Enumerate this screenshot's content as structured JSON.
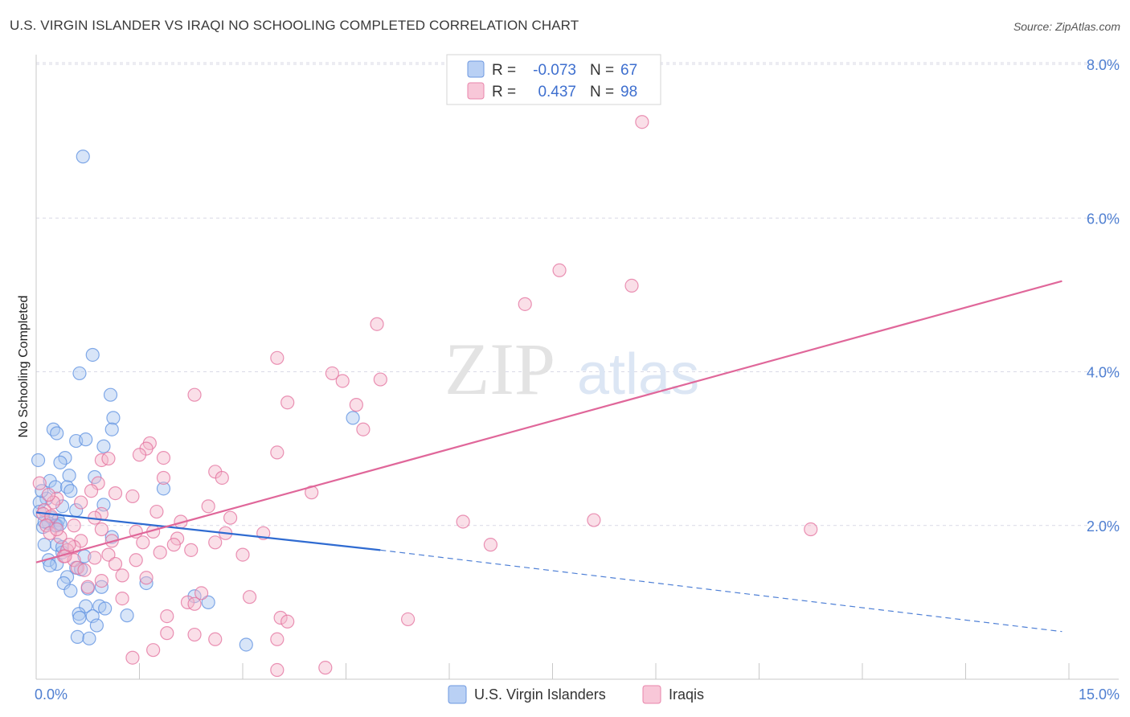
{
  "chart_data": {
    "type": "scatter",
    "title": "U.S. VIRGIN ISLANDER VS IRAQI NO SCHOOLING COMPLETED CORRELATION CHART",
    "source": "Source: ZipAtlas.com",
    "ylabel": "No Schooling Completed",
    "xlabel": "",
    "xlim": [
      0,
      15
    ],
    "ylim": [
      0,
      8.0
    ],
    "x_tick_labels": [
      "0.0%",
      "15.0%"
    ],
    "y_tick_values": [
      2.0,
      4.0,
      6.0,
      8.0
    ],
    "y_tick_labels": [
      "2.0%",
      "4.0%",
      "6.0%",
      "8.0%"
    ],
    "watermark": {
      "zip": "ZIP",
      "atlas": "atlas"
    },
    "legend_position": "top-center",
    "legend": [
      {
        "r_label": "R =",
        "r_value": "-0.073",
        "n_label": "N =",
        "n_value": "67"
      },
      {
        "r_label": "R =",
        "r_value": "0.437",
        "n_label": "N =",
        "n_value": "98"
      }
    ],
    "colors": {
      "blue": "#5b8fe0",
      "blue_fill": "#a9c5f0",
      "pink": "#e36f9c",
      "pink_fill": "#f5b8cd",
      "grid": "#d9d9e6"
    },
    "series": [
      {
        "name": "U.S. Virgin Islanders",
        "trend": {
          "x": [
            0,
            5
          ],
          "y": [
            2.17,
            1.68
          ],
          "dashed_to_x": 14.9,
          "dashed_to_y": 0.62
        },
        "points": [
          [
            0.68,
            6.8
          ],
          [
            0.82,
            4.22
          ],
          [
            0.63,
            3.98
          ],
          [
            1.08,
            3.7
          ],
          [
            0.25,
            3.25
          ],
          [
            0.3,
            3.2
          ],
          [
            1.12,
            3.4
          ],
          [
            1.1,
            3.25
          ],
          [
            0.58,
            3.1
          ],
          [
            0.72,
            3.12
          ],
          [
            0.98,
            3.03
          ],
          [
            0.03,
            2.85
          ],
          [
            0.42,
            2.88
          ],
          [
            0.35,
            2.82
          ],
          [
            0.48,
            2.65
          ],
          [
            0.2,
            2.58
          ],
          [
            0.85,
            2.63
          ],
          [
            0.28,
            2.5
          ],
          [
            0.45,
            2.5
          ],
          [
            0.5,
            2.45
          ],
          [
            1.85,
            2.48
          ],
          [
            0.15,
            2.35
          ],
          [
            0.05,
            2.3
          ],
          [
            0.38,
            2.25
          ],
          [
            0.58,
            2.2
          ],
          [
            0.98,
            2.27
          ],
          [
            0.22,
            2.1
          ],
          [
            0.32,
            2.07
          ],
          [
            0.18,
            2.03
          ],
          [
            0.3,
            2.0
          ],
          [
            0.1,
            1.98
          ],
          [
            0.28,
            2.0
          ],
          [
            0.35,
            2.02
          ],
          [
            0.12,
            2.05
          ],
          [
            1.1,
            1.85
          ],
          [
            0.12,
            1.75
          ],
          [
            0.3,
            1.75
          ],
          [
            0.38,
            1.65
          ],
          [
            0.38,
            1.72
          ],
          [
            0.7,
            1.6
          ],
          [
            0.18,
            1.55
          ],
          [
            0.3,
            1.5
          ],
          [
            0.2,
            1.48
          ],
          [
            0.58,
            1.45
          ],
          [
            0.65,
            1.43
          ],
          [
            0.45,
            1.33
          ],
          [
            0.4,
            1.25
          ],
          [
            0.95,
            1.2
          ],
          [
            1.6,
            1.25
          ],
          [
            0.75,
            1.18
          ],
          [
            0.5,
            1.15
          ],
          [
            2.3,
            1.08
          ],
          [
            2.5,
            1.0
          ],
          [
            0.92,
            0.95
          ],
          [
            0.72,
            0.95
          ],
          [
            1.0,
            0.92
          ],
          [
            0.62,
            0.85
          ],
          [
            0.63,
            0.8
          ],
          [
            0.82,
            0.82
          ],
          [
            1.32,
            0.83
          ],
          [
            0.88,
            0.7
          ],
          [
            0.6,
            0.55
          ],
          [
            0.77,
            0.53
          ],
          [
            3.05,
            0.45
          ],
          [
            4.6,
            3.4
          ],
          [
            0.08,
            2.45
          ],
          [
            0.05,
            2.18
          ]
        ]
      },
      {
        "name": "Iraqis",
        "trend": {
          "x": [
            0,
            14.9
          ],
          "y": [
            1.52,
            5.18
          ]
        },
        "points": [
          [
            8.8,
            7.25
          ],
          [
            7.6,
            5.32
          ],
          [
            8.65,
            5.12
          ],
          [
            7.1,
            4.88
          ],
          [
            4.95,
            4.62
          ],
          [
            3.5,
            4.18
          ],
          [
            4.3,
            3.98
          ],
          [
            5.0,
            3.9
          ],
          [
            4.45,
            3.88
          ],
          [
            2.3,
            3.7
          ],
          [
            3.65,
            3.6
          ],
          [
            4.65,
            3.57
          ],
          [
            4.75,
            3.25
          ],
          [
            1.65,
            3.07
          ],
          [
            1.6,
            3.0
          ],
          [
            3.5,
            2.95
          ],
          [
            1.5,
            2.92
          ],
          [
            1.85,
            2.88
          ],
          [
            0.95,
            2.85
          ],
          [
            1.05,
            2.87
          ],
          [
            2.6,
            2.7
          ],
          [
            2.7,
            2.62
          ],
          [
            1.85,
            2.62
          ],
          [
            0.9,
            2.55
          ],
          [
            0.05,
            2.55
          ],
          [
            0.3,
            2.35
          ],
          [
            0.25,
            2.3
          ],
          [
            1.15,
            2.42
          ],
          [
            1.4,
            2.38
          ],
          [
            0.8,
            2.45
          ],
          [
            4.0,
            2.43
          ],
          [
            0.12,
            2.2
          ],
          [
            2.5,
            2.25
          ],
          [
            0.1,
            2.15
          ],
          [
            1.75,
            2.18
          ],
          [
            0.22,
            2.12
          ],
          [
            0.95,
            2.15
          ],
          [
            2.82,
            2.1
          ],
          [
            2.1,
            2.05
          ],
          [
            6.2,
            2.05
          ],
          [
            8.1,
            2.07
          ],
          [
            11.25,
            1.95
          ],
          [
            3.3,
            1.9
          ],
          [
            0.35,
            1.85
          ],
          [
            0.95,
            1.95
          ],
          [
            1.45,
            1.92
          ],
          [
            2.05,
            1.83
          ],
          [
            0.65,
            1.8
          ],
          [
            2.0,
            1.75
          ],
          [
            1.55,
            1.78
          ],
          [
            1.1,
            1.8
          ],
          [
            2.6,
            1.78
          ],
          [
            0.55,
            1.72
          ],
          [
            0.45,
            1.68
          ],
          [
            1.8,
            1.65
          ],
          [
            1.05,
            1.62
          ],
          [
            2.25,
            1.68
          ],
          [
            3.0,
            1.62
          ],
          [
            6.6,
            1.75
          ],
          [
            0.4,
            1.6
          ],
          [
            0.55,
            1.55
          ],
          [
            1.45,
            1.55
          ],
          [
            1.15,
            1.5
          ],
          [
            0.85,
            1.58
          ],
          [
            0.6,
            1.45
          ],
          [
            0.7,
            1.42
          ],
          [
            1.25,
            1.35
          ],
          [
            1.6,
            1.32
          ],
          [
            0.95,
            1.28
          ],
          [
            0.75,
            1.2
          ],
          [
            2.4,
            1.12
          ],
          [
            2.2,
            1.0
          ],
          [
            1.25,
            1.05
          ],
          [
            2.3,
            0.98
          ],
          [
            3.1,
            1.07
          ],
          [
            1.9,
            0.82
          ],
          [
            3.55,
            0.8
          ],
          [
            3.65,
            0.75
          ],
          [
            5.4,
            0.78
          ],
          [
            1.9,
            0.6
          ],
          [
            2.3,
            0.58
          ],
          [
            2.6,
            0.52
          ],
          [
            3.5,
            0.52
          ],
          [
            1.7,
            0.38
          ],
          [
            1.4,
            0.28
          ],
          [
            3.5,
            0.12
          ],
          [
            4.2,
            0.15
          ],
          [
            0.15,
            2.0
          ],
          [
            0.55,
            2.0
          ],
          [
            0.42,
            1.6
          ],
          [
            0.48,
            1.75
          ],
          [
            0.2,
            1.9
          ],
          [
            0.85,
            2.1
          ],
          [
            0.3,
            1.95
          ],
          [
            0.65,
            2.3
          ],
          [
            0.18,
            2.4
          ],
          [
            1.7,
            1.92
          ],
          [
            2.75,
            1.9
          ]
        ]
      }
    ]
  }
}
